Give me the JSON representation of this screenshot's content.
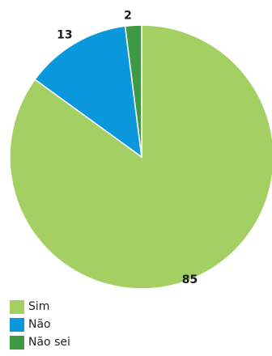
{
  "chart_data": {
    "type": "pie",
    "categories": [
      "Sim",
      "Não",
      "Não sei"
    ],
    "values": [
      85,
      13,
      2
    ],
    "data_labels": [
      "85",
      "13",
      "2"
    ],
    "colors": [
      "#a3cf63",
      "#0a97dc",
      "#3e9a45"
    ],
    "legend_position": "bottom-left",
    "title": ""
  },
  "legend": {
    "items": [
      {
        "label": "Sim",
        "color": "#a3cf63"
      },
      {
        "label": "Não",
        "color": "#0a97dc"
      },
      {
        "label": "Não sei",
        "color": "#3e9a45"
      }
    ]
  }
}
